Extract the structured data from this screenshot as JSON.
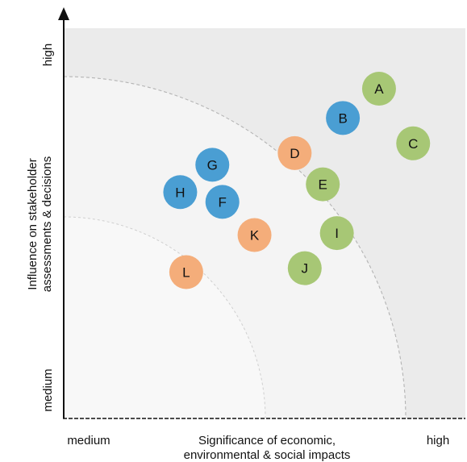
{
  "chart_data": {
    "type": "scatter",
    "title": "",
    "xlabel_lines": [
      "Significance of economic,",
      "environmental & social impacts"
    ],
    "ylabel_lines": [
      "Influence on stakeholder",
      "assessments & decisions"
    ],
    "x_tick_labels": {
      "low": "medium",
      "high": "high"
    },
    "y_tick_labels": {
      "low": "medium",
      "high": "high"
    },
    "xlim": [
      0,
      100
    ],
    "ylim": [
      0,
      100
    ],
    "grid": false,
    "zones": [
      {
        "name": "outer",
        "color": "#ebebeb"
      },
      {
        "name": "middle",
        "color": "#f4f4f4"
      },
      {
        "name": "inner",
        "color": "#f8f8f8"
      }
    ],
    "category_colors": {
      "blue": "#4a9ed3",
      "green": "#a7c775",
      "orange": "#f4ad7a"
    },
    "points": [
      {
        "label": "A",
        "x": 78.5,
        "y": 84.5,
        "category": "green"
      },
      {
        "label": "B",
        "x": 69.5,
        "y": 77.0,
        "category": "blue"
      },
      {
        "label": "C",
        "x": 87.0,
        "y": 70.5,
        "category": "green"
      },
      {
        "label": "D",
        "x": 57.5,
        "y": 68.0,
        "category": "orange"
      },
      {
        "label": "E",
        "x": 64.5,
        "y": 60.0,
        "category": "green"
      },
      {
        "label": "G",
        "x": 37.0,
        "y": 65.0,
        "category": "blue"
      },
      {
        "label": "H",
        "x": 29.0,
        "y": 58.0,
        "category": "blue"
      },
      {
        "label": "F",
        "x": 39.5,
        "y": 55.5,
        "category": "blue"
      },
      {
        "label": "K",
        "x": 47.5,
        "y": 47.0,
        "category": "orange"
      },
      {
        "label": "I",
        "x": 68.0,
        "y": 47.5,
        "category": "green"
      },
      {
        "label": "J",
        "x": 60.0,
        "y": 38.5,
        "category": "green"
      },
      {
        "label": "L",
        "x": 30.5,
        "y": 37.5,
        "category": "orange"
      }
    ]
  }
}
